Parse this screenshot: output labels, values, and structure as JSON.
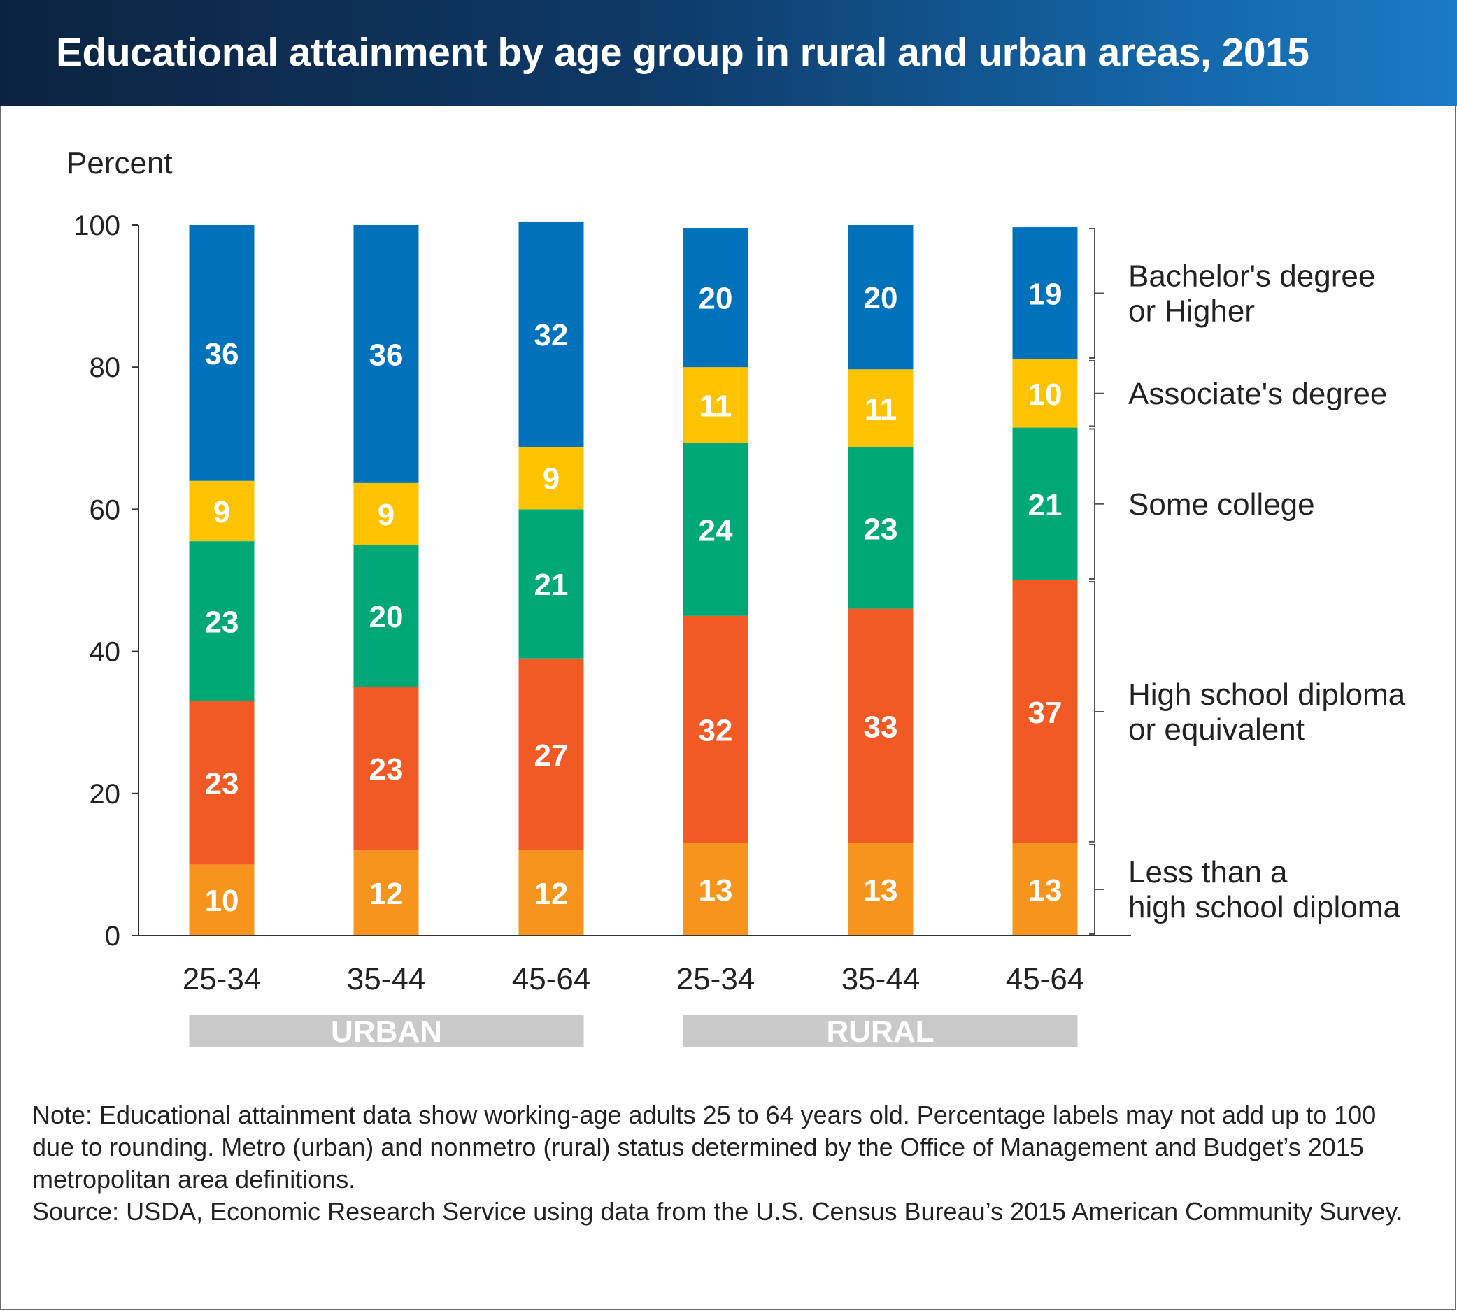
{
  "title": "Educational attainment by age group in rural and urban areas, 2015",
  "chart_data": {
    "type": "bar",
    "stacked": true,
    "ylabel": "Percent",
    "ylim": [
      0,
      100
    ],
    "yticks": [
      0,
      20,
      40,
      60,
      80,
      100
    ],
    "categories": [
      "25-34",
      "35-44",
      "45-64",
      "25-34",
      "35-44",
      "45-64"
    ],
    "groups": [
      {
        "label": "URBAN",
        "categories": [
          0,
          1,
          2
        ]
      },
      {
        "label": "RURAL",
        "categories": [
          3,
          4,
          5
        ]
      }
    ],
    "series": [
      {
        "name": "Less than a high school diploma",
        "legend_lines": [
          "Less than a",
          "high school diploma"
        ],
        "color": "#f7941d",
        "values": [
          10,
          12,
          12,
          13,
          13,
          13
        ],
        "labels": [
          "10",
          "12",
          "12",
          "13",
          "13",
          "13"
        ]
      },
      {
        "name": "High school diploma or equivalent",
        "legend_lines": [
          "High school diploma",
          "or equivalent"
        ],
        "color": "#f15a24",
        "values": [
          23,
          23,
          27,
          32,
          33,
          37
        ],
        "labels": [
          "23",
          "23",
          "27",
          "32",
          "33",
          "37"
        ]
      },
      {
        "name": "Some college",
        "legend_lines": [
          "Some college"
        ],
        "color": "#00a878",
        "values": [
          22.5,
          20,
          21,
          24.3,
          22.7,
          21.5
        ],
        "labels": [
          "23",
          "20",
          "21",
          "24",
          "23",
          "21"
        ]
      },
      {
        "name": "Associate's degree",
        "legend_lines": [
          "Associate's degree"
        ],
        "color": "#fdc300",
        "values": [
          8.5,
          8.7,
          8.8,
          10.7,
          11,
          9.6
        ],
        "labels": [
          "9",
          "9",
          "9",
          "11",
          "11",
          "10"
        ]
      },
      {
        "name": "Bachelor's degree or Higher",
        "legend_lines": [
          "Bachelor's degree",
          "or Higher"
        ],
        "color": "#0072bc",
        "values": [
          36,
          36.3,
          31.7,
          19.6,
          20.3,
          18.6
        ],
        "labels": [
          "36",
          "36",
          "32",
          "20",
          "20",
          "19"
        ]
      }
    ],
    "grid": false,
    "legend_position": "right"
  },
  "notes": {
    "note": "Note: Educational attainment data show working-age adults 25 to 64 years old. Percentage labels may not add up to 100 due to rounding. Metro (urban) and nonmetro (rural) status determined by the Office of Management and Budget’s 2015 metropolitan area definitions.",
    "source": "Source: USDA, Economic Research Service using data from the U.S. Census Bureau’s 2015 American Community Survey."
  }
}
